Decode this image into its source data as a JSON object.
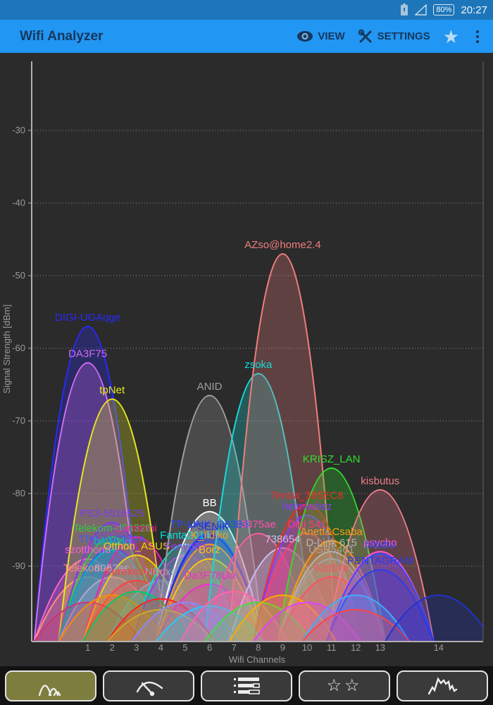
{
  "status_bar": {
    "time": "20:27",
    "battery_percent": "80%"
  },
  "app_bar": {
    "title": "Wifi Analyzer",
    "view_label": "VIEW",
    "settings_label": "SETTINGS",
    "accent_color": "#2196f3",
    "status_color": "#1e76ba"
  },
  "chart_data": {
    "type": "area",
    "title": "",
    "xlabel": "Wifi Channels",
    "ylabel": "Signal Strength [dBm]",
    "x_ticks": [
      1,
      2,
      3,
      4,
      5,
      6,
      7,
      8,
      9,
      10,
      11,
      12,
      13,
      14
    ],
    "y_ticks": [
      -30,
      -40,
      -50,
      -60,
      -70,
      -80,
      -90
    ],
    "ylim": [
      -100,
      -20
    ],
    "grid": "dotted",
    "background": "#2b2b2b",
    "networks": [
      {
        "name": "DIGI-UGAqge",
        "channel": 1,
        "level": -57,
        "color": "#2929ff"
      },
      {
        "name": "DA3F75",
        "channel": 1,
        "level": -62,
        "color": "#d36bf2"
      },
      {
        "name": "szotthon6",
        "channel": 1,
        "level": -89,
        "color": "#ff5fd0"
      },
      {
        "name": "Telekom-e",
        "channel": 1,
        "level": -91.5,
        "color": "#ff8f7a"
      },
      {
        "name": "tpNet",
        "channel": 2,
        "level": -67,
        "color": "#e6e622"
      },
      {
        "name": "PS3-5016525",
        "channel": 2,
        "level": -84,
        "color": "#7a3bf0"
      },
      {
        "name": "Telekom-d94328",
        "channel": 2,
        "level": -86,
        "color": "#2ecc40"
      },
      {
        "name": "TP-Link0269A",
        "channel": 2,
        "level": -87.5,
        "color": "#4455ff"
      },
      {
        "name": "bik4odo",
        "channel": 2,
        "level": -87.8,
        "color": "#00b8b8"
      },
      {
        "name": "8052ae",
        "channel": 2,
        "level": -91.5,
        "color": "#b3a6cc"
      },
      {
        "name": "Lambrini",
        "channel": 3,
        "level": -86,
        "color": "#f023a8"
      },
      {
        "name": "Otthon_ASUS",
        "channel": 3,
        "level": -88.5,
        "color": "#f2d410"
      },
      {
        "name": "Kerekes4Haz",
        "channel": 3,
        "level": -92,
        "color": "#ff4040"
      },
      {
        "name": "NBdxe",
        "channel": 4,
        "level": -92,
        "color": "#93a3c0"
      },
      {
        "name": "Fanta2014",
        "channel": 5,
        "level": -87,
        "color": "#00e0e0"
      },
      {
        "name": "Fenyo86",
        "channel": 5,
        "level": -88.5,
        "color": "#9a3bee"
      },
      {
        "name": "ANID",
        "channel": 6,
        "level": -66.5,
        "color": "#9e9e9e"
      },
      {
        "name": "BB",
        "channel": 6,
        "level": -82.5,
        "color": "#ffffff"
      },
      {
        "name": "TP-LINK_C63B6",
        "channel": 6,
        "level": -85.5,
        "color": "#2b46ff"
      },
      {
        "name": "PSENIK",
        "channel": 6,
        "level": -85.8,
        "color": "#1b2fd6"
      },
      {
        "name": "K_Ildiko",
        "channel": 6,
        "level": -87,
        "color": "#ff9a1f"
      },
      {
        "name": "Borz",
        "channel": 6,
        "level": -89,
        "color": "#ffc414"
      },
      {
        "name": "Da3F78Ua",
        "channel": 6,
        "level": -92.5,
        "color": "#f02bd0"
      },
      {
        "name": "zsoka",
        "channel": 8,
        "level": -63.5,
        "color": "#17d9d9"
      },
      {
        "name": "3375ae",
        "channel": 8,
        "level": -85.5,
        "color": "#ff4fae"
      },
      {
        "name": "AZso@home2.4",
        "channel": 9,
        "level": -47,
        "color": "#ef7d7d"
      },
      {
        "name": "738654",
        "channel": 9,
        "level": -87.5,
        "color": "#cfc0f0"
      },
      {
        "name": "Tenda_385EC8",
        "channel": 10,
        "level": -81.5,
        "color": "#ee2b2b"
      },
      {
        "name": "heimladisz",
        "channel": 10,
        "level": -83,
        "color": "#8c38ff"
      },
      {
        "name": "Digi 541",
        "channel": 10,
        "level": -85.5,
        "color": "#ff3d6e"
      },
      {
        "name": "KRISZ_LAN",
        "channel": 11,
        "level": -76.5,
        "color": "#2ee02e"
      },
      {
        "name": "Anett&Csaba",
        "channel": 11,
        "level": -86.5,
        "color": "#ff9d14"
      },
      {
        "name": "D-Link 615",
        "channel": 11,
        "level": -88,
        "color": "#b5b5b5"
      },
      {
        "name": "USR5461",
        "channel": 11,
        "level": -89,
        "color": "#a3a3a3"
      },
      {
        "name": "62d07e",
        "channel": 11,
        "level": -91.5,
        "color": "#ff4f5e"
      },
      {
        "name": "kisbutus",
        "channel": 13,
        "level": -79.5,
        "color": "#ef7d8c"
      },
      {
        "name": "psycho",
        "channel": 13,
        "level": -88,
        "color": "#ff57cf"
      },
      {
        "name": "billabu",
        "channel": 13,
        "level": -88.3,
        "color": "#3a49ff"
      },
      {
        "name": "PENTAGRAM",
        "channel": 13,
        "level": -90.5,
        "color": "#2b3bf0"
      },
      {
        "name": "",
        "channel": 1,
        "level": -95,
        "color": "#cc3377"
      },
      {
        "name": "",
        "channel": 2,
        "level": -94,
        "color": "#ff8800"
      },
      {
        "name": "",
        "channel": 3,
        "level": -93.5,
        "color": "#00cc66"
      },
      {
        "name": "",
        "channel": 4,
        "level": -94.5,
        "color": "#ff2222"
      },
      {
        "name": "",
        "channel": 4,
        "level": -96,
        "color": "#ccaa22"
      },
      {
        "name": "",
        "channel": 5,
        "level": -95,
        "color": "#8888ff"
      },
      {
        "name": "",
        "channel": 6,
        "level": -95.5,
        "color": "#22ccff"
      },
      {
        "name": "",
        "channel": 7,
        "level": -93.5,
        "color": "#ff66aa"
      },
      {
        "name": "",
        "channel": 8,
        "level": -95,
        "color": "#44dd44"
      },
      {
        "name": "",
        "channel": 9,
        "level": -94,
        "color": "#ffaa00"
      },
      {
        "name": "",
        "channel": 10,
        "level": -95,
        "color": "#dd44ff"
      },
      {
        "name": "",
        "channel": 12,
        "level": -94,
        "color": "#44aaff"
      },
      {
        "name": "",
        "channel": 12,
        "level": -96,
        "color": "#ff4444"
      },
      {
        "name": "",
        "channel": 14,
        "level": -94,
        "color": "#2233cc"
      }
    ]
  },
  "toolbar": {
    "buttons": [
      {
        "name": "channel-graph",
        "active": true
      },
      {
        "name": "time-graph",
        "active": false
      },
      {
        "name": "access-points",
        "active": false
      },
      {
        "name": "channel-rating",
        "active": false
      },
      {
        "name": "signal-meter",
        "active": false
      }
    ]
  }
}
